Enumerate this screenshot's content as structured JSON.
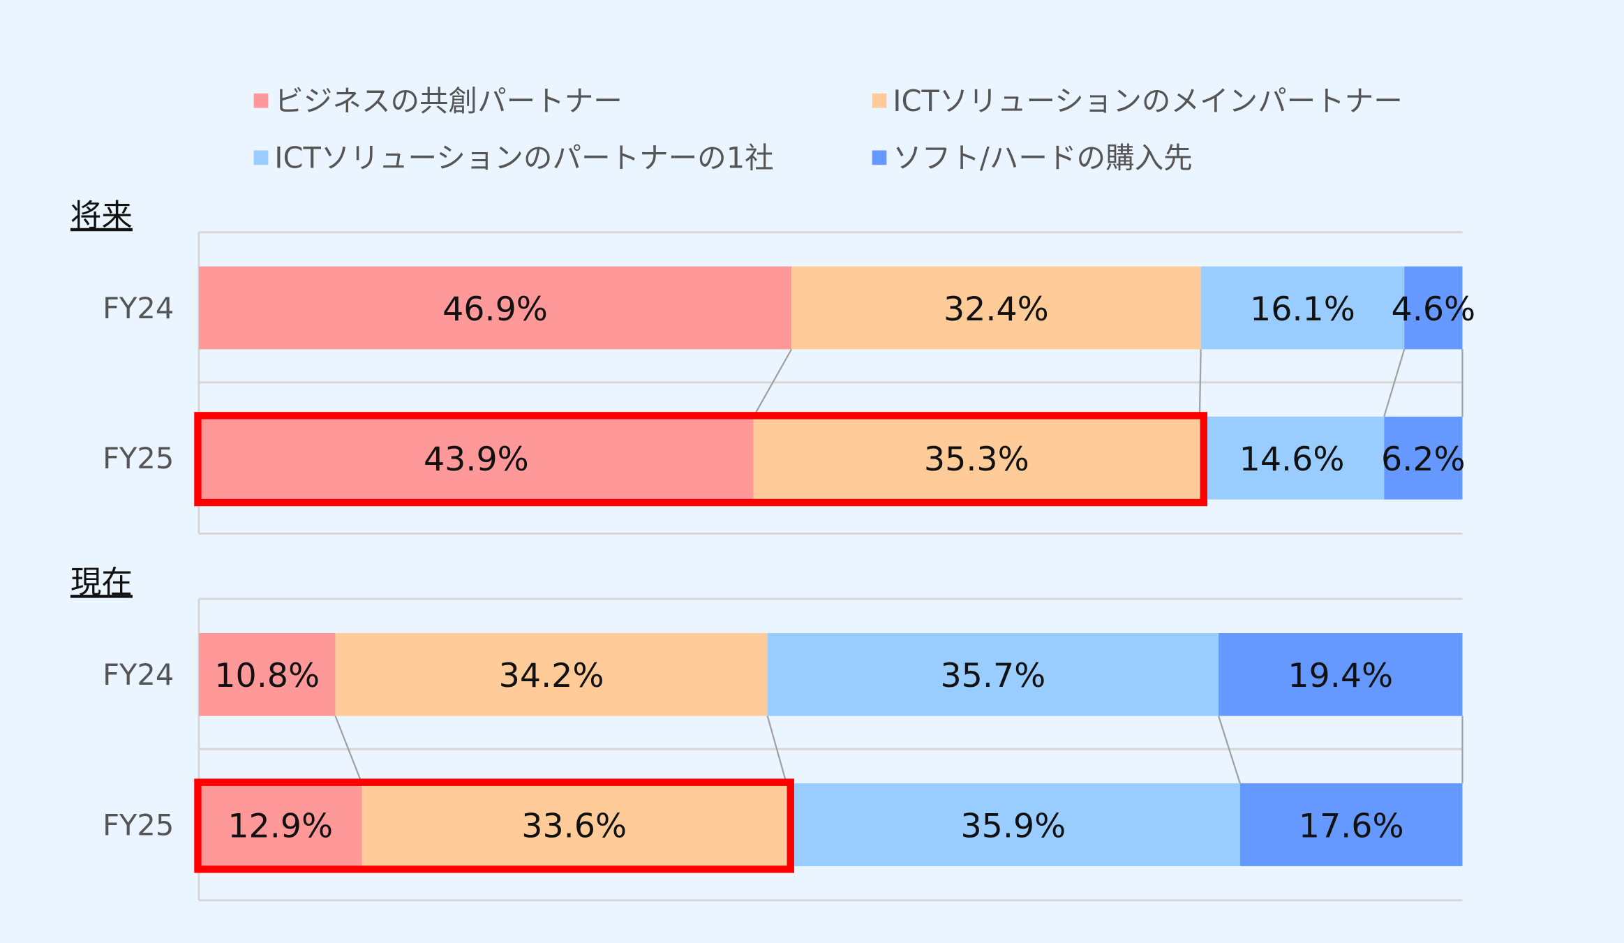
{
  "chart_data": {
    "type": "bar",
    "orientation": "horizontal",
    "stacked": "100%",
    "legend_position": "top",
    "series": [
      {
        "name": "ビジネスの共創パートナー",
        "color": "#FF9999"
      },
      {
        "name": "ICTソリューションのメインパートナー",
        "color": "#FFCC99"
      },
      {
        "name": "ICTソリューションのパートナーの1社",
        "color": "#99CCFF"
      },
      {
        "name": "ソフト/ハードの購入先",
        "color": "#6699FF"
      }
    ],
    "groups": [
      {
        "title": "将来",
        "rows": [
          {
            "category": "FY24",
            "values": [
              46.9,
              32.4,
              16.1,
              4.6
            ],
            "labels": [
              "46.9%",
              "32.4%",
              "16.1%",
              "4.6%"
            ],
            "highlighted_segments": 0
          },
          {
            "category": "FY25",
            "values": [
              43.9,
              35.3,
              14.6,
              6.2
            ],
            "labels": [
              "43.9%",
              "35.3%",
              "14.6%",
              "6.2%"
            ],
            "highlighted_segments": 2
          }
        ]
      },
      {
        "title": "現在",
        "rows": [
          {
            "category": "FY24",
            "values": [
              10.8,
              34.2,
              35.7,
              19.4
            ],
            "labels": [
              "10.8%",
              "34.2%",
              "35.7%",
              "19.4%"
            ],
            "highlighted_segments": 0
          },
          {
            "category": "FY25",
            "values": [
              12.9,
              33.6,
              35.9,
              17.6
            ],
            "labels": [
              "12.9%",
              "33.6%",
              "35.9%",
              "17.6%"
            ],
            "highlighted_segments": 2
          }
        ]
      }
    ],
    "xlim": [
      0,
      100
    ],
    "highlight_color": "#FF0000",
    "series_lines": true
  }
}
